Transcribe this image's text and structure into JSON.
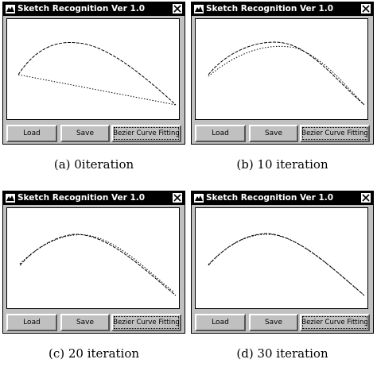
{
  "panels": [
    {
      "title": "Sketch Recognition Ver 1.0",
      "buttons": {
        "load": "Load",
        "save": "Save",
        "fit": "Bezier Curve Fitting"
      },
      "caption": "(a)  0iteration",
      "close_icon": "close-icon",
      "app_icon": "app-icon"
    },
    {
      "title": "Sketch Recognition Ver 1.0",
      "buttons": {
        "load": "Load",
        "save": "Save",
        "fit": "Bezier Curve Fitting"
      },
      "caption": "(b)  10 iteration",
      "close_icon": "close-icon",
      "app_icon": "app-icon"
    },
    {
      "title": "Sketch Recognition Ver 1.0",
      "buttons": {
        "load": "Load",
        "save": "Save",
        "fit": "Bezier Curve Fitting"
      },
      "caption": "(c)  20 iteration",
      "close_icon": "close-icon",
      "app_icon": "app-icon"
    },
    {
      "title": "Sketch Recognition Ver 1.0",
      "buttons": {
        "load": "Load",
        "save": "Save",
        "fit": "Bezier Curve Fitting"
      },
      "caption": "(d)  30 iteration",
      "close_icon": "close-icon",
      "app_icon": "app-icon"
    }
  ],
  "colors": {
    "titlebar": "#000000",
    "window": "#c0c0c0",
    "canvas": "#ffffff"
  }
}
